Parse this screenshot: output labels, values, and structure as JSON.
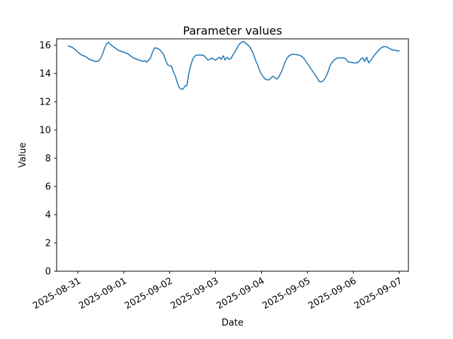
{
  "figure": {
    "title": "Parameter values",
    "xlabel": "Date",
    "ylabel": "Value"
  },
  "chart_data": {
    "type": "line",
    "title": "Parameter values",
    "xlabel": "Date",
    "ylabel": "Value",
    "grid": false,
    "legend": null,
    "line_color": "#1f77b4",
    "axis_color": "#000000",
    "background_color": "#ffffff",
    "ylim": [
      0,
      16.45
    ],
    "xlim_hours": [
      -11.1,
      172.8
    ],
    "y_ticks": [
      0,
      2,
      4,
      6,
      8,
      10,
      12,
      14,
      16
    ],
    "x_tick_hours": [
      0,
      24,
      48,
      72,
      96,
      120,
      144,
      168
    ],
    "x_tick_labels": [
      "2025-08-31",
      "2025-09-01",
      "2025-09-02",
      "2025-09-03",
      "2025-09-04",
      "2025-09-05",
      "2025-09-06",
      "2025-09-07"
    ],
    "series": [
      {
        "name": "Parameter values",
        "color": "#1f77b4",
        "x_start_hour_offset": -5,
        "x_step_hours": 1,
        "values": [
          15.95,
          15.9,
          15.85,
          15.75,
          15.65,
          15.5,
          15.4,
          15.3,
          15.25,
          15.2,
          15.1,
          15.0,
          14.95,
          14.9,
          14.85,
          14.85,
          14.9,
          15.1,
          15.4,
          15.8,
          16.1,
          16.2,
          16.05,
          15.95,
          15.85,
          15.75,
          15.65,
          15.6,
          15.55,
          15.5,
          15.45,
          15.4,
          15.3,
          15.2,
          15.1,
          15.05,
          15.0,
          14.95,
          14.9,
          14.85,
          14.9,
          14.8,
          14.95,
          15.1,
          15.5,
          15.8,
          15.8,
          15.75,
          15.65,
          15.5,
          15.3,
          14.9,
          14.6,
          14.55,
          14.5,
          14.1,
          13.8,
          13.35,
          13.0,
          12.88,
          12.9,
          13.1,
          13.15,
          14.0,
          14.55,
          15.0,
          15.2,
          15.3,
          15.3,
          15.3,
          15.3,
          15.25,
          15.1,
          14.95,
          15.0,
          15.1,
          15.0,
          14.95,
          15.05,
          15.15,
          15.0,
          15.25,
          14.95,
          15.15,
          15.0,
          15.05,
          15.3,
          15.5,
          15.75,
          16.0,
          16.15,
          16.25,
          16.25,
          16.1,
          16.0,
          15.85,
          15.6,
          15.3,
          14.9,
          14.6,
          14.2,
          13.95,
          13.75,
          13.6,
          13.55,
          13.55,
          13.7,
          13.8,
          13.7,
          13.6,
          13.75,
          14.0,
          14.3,
          14.7,
          15.0,
          15.2,
          15.3,
          15.35,
          15.35,
          15.35,
          15.3,
          15.3,
          15.2,
          15.1,
          14.9,
          14.7,
          14.5,
          14.3,
          14.1,
          13.9,
          13.7,
          13.45,
          13.4,
          13.45,
          13.6,
          13.85,
          14.2,
          14.6,
          14.8,
          14.95,
          15.05,
          15.1,
          15.1,
          15.1,
          15.1,
          15.05,
          14.85,
          14.8,
          14.78,
          14.75,
          14.75,
          14.75,
          14.85,
          15.05,
          15.1,
          14.85,
          15.15,
          14.75,
          14.9,
          15.1,
          15.3,
          15.45,
          15.6,
          15.75,
          15.85,
          15.9,
          15.9,
          15.85,
          15.75,
          15.7,
          15.65,
          15.65,
          15.6,
          15.6
        ]
      }
    ]
  }
}
